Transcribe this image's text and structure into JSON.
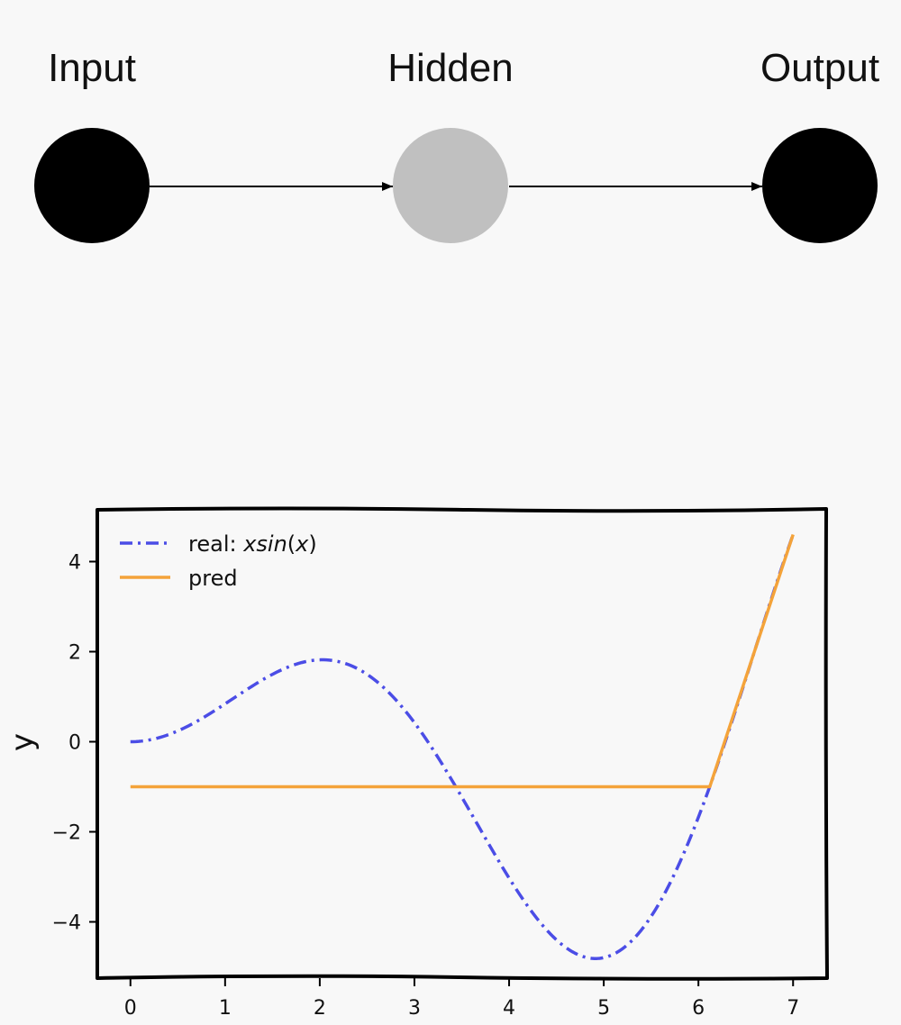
{
  "diagram": {
    "nodes": [
      {
        "label": "Input",
        "fill": "#000000"
      },
      {
        "label": "Hidden",
        "fill": "#c0c0c0"
      },
      {
        "label": "Output",
        "fill": "#000000"
      }
    ],
    "edges": [
      {
        "from": "Input",
        "to": "Hidden"
      },
      {
        "from": "Hidden",
        "to": "Output"
      }
    ]
  },
  "chart_data": {
    "type": "line",
    "title": "",
    "xlabel": "",
    "ylabel": "y",
    "xlim": [
      -0.35,
      7.35
    ],
    "ylim": [
      -5.25,
      5.15
    ],
    "xticks": [
      0,
      1,
      2,
      3,
      4,
      5,
      6,
      7
    ],
    "yticks": [
      4,
      2,
      0,
      -2,
      -4
    ],
    "xtick_labels": [
      "0",
      "1",
      "2",
      "3",
      "4",
      "5",
      "6",
      "7"
    ],
    "ytick_labels": [
      "4",
      "2",
      "0",
      "−2",
      "−4"
    ],
    "grid": false,
    "legend": "top-left",
    "series": [
      {
        "name": "real: xsin(x)",
        "name_plain": "real: ",
        "name_math": "xsin",
        "name_math_arg": "x",
        "function": "x*sin(x)",
        "x_range": [
          0,
          7
        ],
        "style": "dashdot",
        "color": "#4b4de6"
      },
      {
        "name": "pred",
        "style": "solid",
        "color": "#f4a33a",
        "x": [
          0,
          6.12,
          7.0
        ],
        "y": [
          -1.0,
          -1.0,
          4.6
        ]
      }
    ]
  }
}
